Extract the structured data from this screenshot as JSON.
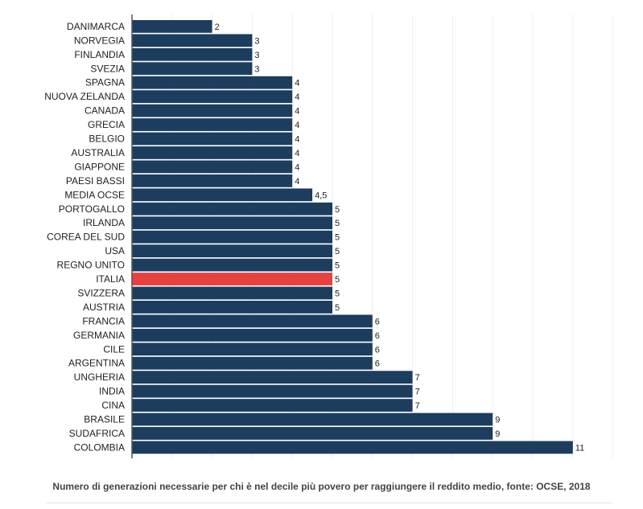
{
  "chart_data": {
    "type": "bar",
    "orientation": "horizontal",
    "categories": [
      "DANIMARCA",
      "NORVEGIA",
      "FINLANDIA",
      "SVEZIA",
      "SPAGNA",
      "NUOVA ZELANDA",
      "CANADA",
      "GRECIA",
      "BELGIO",
      "AUSTRALIA",
      "GIAPPONE",
      "PAESI BASSI",
      "MEDIA OCSE",
      "PORTOGALLO",
      "IRLANDA",
      "COREA DEL SUD",
      "USA",
      "REGNO UNITO",
      "ITALIA",
      "SVIZZERA",
      "AUSTRIA",
      "FRANCIA",
      "GERMANIA",
      "CILE",
      "ARGENTINA",
      "UNGHERIA",
      "INDIA",
      "CINA",
      "BRASILE",
      "SUDAFRICA",
      "COLOMBIA"
    ],
    "values": [
      2,
      3,
      3,
      3,
      4,
      4,
      4,
      4,
      4,
      4,
      4,
      4,
      4.5,
      5,
      5,
      5,
      5,
      5,
      5,
      5,
      5,
      6,
      6,
      6,
      6,
      7,
      7,
      7,
      9,
      9,
      11
    ],
    "value_labels": [
      "2",
      "3",
      "3",
      "3",
      "4",
      "4",
      "4",
      "4",
      "4",
      "4",
      "4",
      "4",
      "4,5",
      "5",
      "5",
      "5",
      "5",
      "5",
      "5",
      "5",
      "5",
      "6",
      "6",
      "6",
      "6",
      "7",
      "7",
      "7",
      "9",
      "9",
      "11"
    ],
    "highlight": "ITALIA",
    "xlim": [
      0,
      12
    ],
    "grid": true,
    "title": "",
    "xlabel": "",
    "ylabel": "",
    "colors": {
      "bar": "#1c3d5e",
      "highlight": "#e8413f",
      "grid": "#eeeeee",
      "axis": "#555555",
      "text": "#222222"
    }
  },
  "caption": "Numero di generazioni necessarie per chi è nel decile più povero per raggiungere il reddito medio, fonte: OCSE, 2018"
}
